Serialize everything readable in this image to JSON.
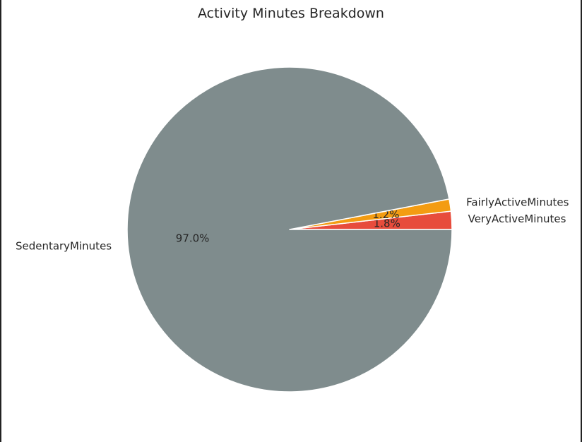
{
  "chart_data": {
    "type": "pie",
    "title": "Activity Minutes Breakdown",
    "slices": [
      {
        "label": "VeryActiveMinutes",
        "value": 1.8,
        "pct_label": "1.8%",
        "color": "#e74c3c"
      },
      {
        "label": "FairlyActiveMinutes",
        "value": 1.2,
        "pct_label": "1.2%",
        "color": "#f39c12"
      },
      {
        "label": "SedentaryMinutes",
        "value": 97.0,
        "pct_label": "97.0%",
        "color": "#7f8c8d"
      }
    ]
  }
}
